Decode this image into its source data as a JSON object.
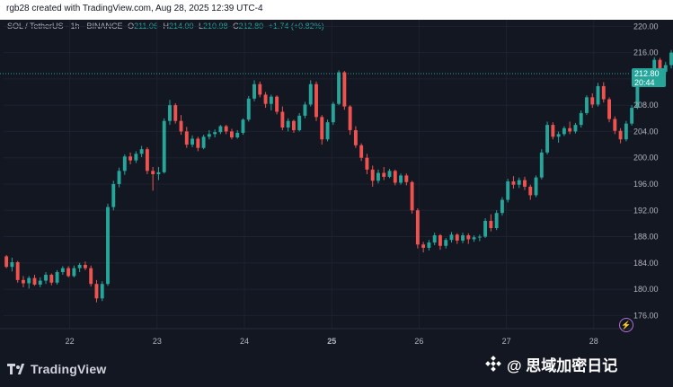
{
  "header": {
    "caption": "rgb28 created with TradingView.com, Aug 28, 2025 12:39 UTC-4"
  },
  "legend": {
    "symbol": "SOL / TetherUS · 1h · BINANCE",
    "o_label": "O",
    "o_value": "211.06",
    "h_label": "H",
    "h_value": "214.00",
    "l_label": "L",
    "l_value": "210.98",
    "c_label": "C",
    "c_value": "212.80",
    "change": "+1.74 (+0.82%)"
  },
  "price_tag": {
    "price": "212.80",
    "countdown": "20:44"
  },
  "footer": {
    "brand": "TradingView",
    "watermark": "@ 思域加密日记"
  },
  "colors": {
    "up": "#26a69a",
    "down": "#ef5350",
    "background": "#131722",
    "grid": "#1e2230",
    "axis_text": "#b2b5be"
  },
  "chart_data": {
    "type": "candlestick",
    "title": "",
    "xlabel": "",
    "ylabel": "",
    "ylim": [
      174,
      221
    ],
    "y_ticks": [
      176,
      180,
      184,
      188,
      192,
      196,
      200,
      204,
      208,
      212,
      216,
      220
    ],
    "x_ticks": [
      {
        "label": "22",
        "x": 11.75
      },
      {
        "label": "23",
        "x": 27.25
      },
      {
        "label": "24",
        "x": 42.75
      },
      {
        "label": "25",
        "x": 58.25,
        "bold": true
      },
      {
        "label": "26",
        "x": 73.75
      },
      {
        "label": "27",
        "x": 89.25
      },
      {
        "label": "28",
        "x": 104.75
      }
    ],
    "x_range": [
      0,
      111
    ],
    "current_price": 212.8,
    "grid": true,
    "candles": [
      [
        185.0,
        185.2,
        183.2,
        183.4
      ],
      [
        183.4,
        184.8,
        182.7,
        184.1
      ],
      [
        184.1,
        184.3,
        181.0,
        181.4
      ],
      [
        181.4,
        182.0,
        180.3,
        180.9
      ],
      [
        180.9,
        182.0,
        180.1,
        181.7
      ],
      [
        181.7,
        182.2,
        180.5,
        180.7
      ],
      [
        180.7,
        181.8,
        180.3,
        181.3
      ],
      [
        181.3,
        182.6,
        180.8,
        182.2
      ],
      [
        182.2,
        182.4,
        180.6,
        181.0
      ],
      [
        181.0,
        182.9,
        180.7,
        182.6
      ],
      [
        182.6,
        183.5,
        182.2,
        183.2
      ],
      [
        183.2,
        183.5,
        181.8,
        182.0
      ],
      [
        182.0,
        183.6,
        181.8,
        183.2
      ],
      [
        183.2,
        184.0,
        182.6,
        183.7
      ],
      [
        183.7,
        184.2,
        182.9,
        183.2
      ],
      [
        183.2,
        183.6,
        180.4,
        180.8
      ],
      [
        180.8,
        181.4,
        178.0,
        178.6
      ],
      [
        178.6,
        181.2,
        178.2,
        180.8
      ],
      [
        180.8,
        193.0,
        180.5,
        192.5
      ],
      [
        192.5,
        196.5,
        192.0,
        196.0
      ],
      [
        196.0,
        198.5,
        195.5,
        198.0
      ],
      [
        198.0,
        200.5,
        197.4,
        200.2
      ],
      [
        200.2,
        200.8,
        199.0,
        199.6
      ],
      [
        199.6,
        201.0,
        199.2,
        200.6
      ],
      [
        200.6,
        201.8,
        200.1,
        201.3
      ],
      [
        201.3,
        201.6,
        197.5,
        198.0
      ],
      [
        198.0,
        198.6,
        195.0,
        197.5
      ],
      [
        197.5,
        198.6,
        196.6,
        197.8
      ],
      [
        197.8,
        206.0,
        197.6,
        205.6
      ],
      [
        205.6,
        208.8,
        205.0,
        208.0
      ],
      [
        208.0,
        208.3,
        205.2,
        205.6
      ],
      [
        205.6,
        206.5,
        203.5,
        204.0
      ],
      [
        204.0,
        204.7,
        201.5,
        202.0
      ],
      [
        202.0,
        203.4,
        201.6,
        202.9
      ],
      [
        202.9,
        203.2,
        201.0,
        201.5
      ],
      [
        201.5,
        203.5,
        201.3,
        203.2
      ],
      [
        203.2,
        204.2,
        202.8,
        203.6
      ],
      [
        203.6,
        204.3,
        203.1,
        203.9
      ],
      [
        203.9,
        205.0,
        203.6,
        204.8
      ],
      [
        204.8,
        205.0,
        203.6,
        204.0
      ],
      [
        204.0,
        204.4,
        202.8,
        203.1
      ],
      [
        203.1,
        204.2,
        202.9,
        203.8
      ],
      [
        203.8,
        206.0,
        203.5,
        205.8
      ],
      [
        205.8,
        209.4,
        205.5,
        209.0
      ],
      [
        209.0,
        211.8,
        208.6,
        211.2
      ],
      [
        211.2,
        211.6,
        209.2,
        209.6
      ],
      [
        209.6,
        210.0,
        207.6,
        208.2
      ],
      [
        208.2,
        209.6,
        207.2,
        209.3
      ],
      [
        209.3,
        209.5,
        206.6,
        207.0
      ],
      [
        207.0,
        207.8,
        204.2,
        204.6
      ],
      [
        204.6,
        206.0,
        204.0,
        205.6
      ],
      [
        205.6,
        205.8,
        203.8,
        204.2
      ],
      [
        204.2,
        206.8,
        204.0,
        206.4
      ],
      [
        206.4,
        208.5,
        206.0,
        208.1
      ],
      [
        208.1,
        211.8,
        207.8,
        211.2
      ],
      [
        211.2,
        211.6,
        205.6,
        206.2
      ],
      [
        206.2,
        206.5,
        202.0,
        202.8
      ],
      [
        202.8,
        205.8,
        202.5,
        205.4
      ],
      [
        205.4,
        208.5,
        205.0,
        208.2
      ],
      [
        208.2,
        213.3,
        208.0,
        213.0
      ],
      [
        213.0,
        213.2,
        207.3,
        207.8
      ],
      [
        207.8,
        208.0,
        203.5,
        204.2
      ],
      [
        204.2,
        204.8,
        201.5,
        201.9
      ],
      [
        201.9,
        202.2,
        199.5,
        200.0
      ],
      [
        200.0,
        200.6,
        197.5,
        198.2
      ],
      [
        198.2,
        198.8,
        195.6,
        196.5
      ],
      [
        196.5,
        198.2,
        196.1,
        197.7
      ],
      [
        197.7,
        198.6,
        196.6,
        197.1
      ],
      [
        197.1,
        198.3,
        196.9,
        198.0
      ],
      [
        198.0,
        198.2,
        195.8,
        196.2
      ],
      [
        196.2,
        197.6,
        195.9,
        197.3
      ],
      [
        197.3,
        197.6,
        195.8,
        196.3
      ],
      [
        196.3,
        196.5,
        191.5,
        192.0
      ],
      [
        192.0,
        192.3,
        186.2,
        186.8
      ],
      [
        186.8,
        187.2,
        185.6,
        186.3
      ],
      [
        186.3,
        187.5,
        185.9,
        187.1
      ],
      [
        187.1,
        188.6,
        186.7,
        188.2
      ],
      [
        188.2,
        188.4,
        186.0,
        186.6
      ],
      [
        186.6,
        187.8,
        186.2,
        187.5
      ],
      [
        187.5,
        188.7,
        187.1,
        188.3
      ],
      [
        188.3,
        188.5,
        186.9,
        187.4
      ],
      [
        187.4,
        188.6,
        187.0,
        188.2
      ],
      [
        188.2,
        188.5,
        186.9,
        187.6
      ],
      [
        187.6,
        188.2,
        187.2,
        187.9
      ],
      [
        187.9,
        188.3,
        187.3,
        188.0
      ],
      [
        188.0,
        190.8,
        187.8,
        190.4
      ],
      [
        190.4,
        191.4,
        188.8,
        189.3
      ],
      [
        189.3,
        192.0,
        189.0,
        191.6
      ],
      [
        191.6,
        194.0,
        191.2,
        193.6
      ],
      [
        193.6,
        196.8,
        193.2,
        196.4
      ],
      [
        196.4,
        197.2,
        195.3,
        195.9
      ],
      [
        195.9,
        197.0,
        195.4,
        196.6
      ],
      [
        196.6,
        197.1,
        195.1,
        195.6
      ],
      [
        195.6,
        195.9,
        193.6,
        194.3
      ],
      [
        194.3,
        197.3,
        194.0,
        197.0
      ],
      [
        197.0,
        201.3,
        196.7,
        200.8
      ],
      [
        200.8,
        205.5,
        200.5,
        205.0
      ],
      [
        205.0,
        205.4,
        202.8,
        203.2
      ],
      [
        203.2,
        204.0,
        202.3,
        203.6
      ],
      [
        203.6,
        204.8,
        203.3,
        204.5
      ],
      [
        204.5,
        205.5,
        203.6,
        204.0
      ],
      [
        204.0,
        205.3,
        203.7,
        205.0
      ],
      [
        205.0,
        207.2,
        204.6,
        206.8
      ],
      [
        206.8,
        209.5,
        206.5,
        209.2
      ],
      [
        209.2,
        209.8,
        207.6,
        208.1
      ],
      [
        208.1,
        211.4,
        207.8,
        210.9
      ],
      [
        210.9,
        211.5,
        208.4,
        208.9
      ],
      [
        208.9,
        209.2,
        205.4,
        205.9
      ],
      [
        205.9,
        206.3,
        203.6,
        204.1
      ],
      [
        204.1,
        204.5,
        202.2,
        202.8
      ],
      [
        202.8,
        205.6,
        202.5,
        205.2
      ],
      [
        205.2,
        208.0,
        204.9,
        207.6
      ],
      [
        207.6,
        211.8,
        207.4,
        211.4
      ],
      [
        211.4,
        213.1,
        211.0,
        212.7
      ],
      [
        212.7,
        213.0,
        211.2,
        211.7
      ],
      [
        211.7,
        215.3,
        211.3,
        214.9
      ],
      [
        214.9,
        215.2,
        212.6,
        213.1
      ],
      [
        213.1,
        214.6,
        212.7,
        214.1
      ],
      [
        214.1,
        216.4,
        213.6,
        216.0
      ],
      [
        216.0,
        216.5,
        210.6,
        211.2
      ],
      [
        211.06,
        214.0,
        210.98,
        212.8
      ]
    ]
  }
}
